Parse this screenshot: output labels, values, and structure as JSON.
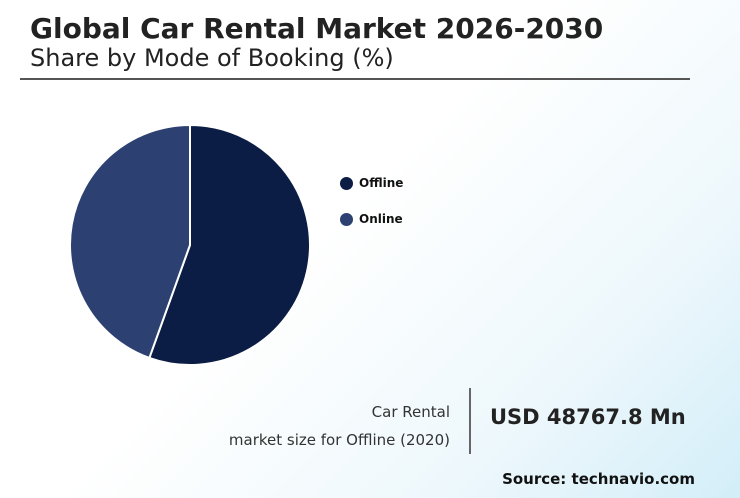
{
  "header": {
    "title": "Global Car Rental Market 2026-2030",
    "subtitle": "Share by Mode of Booking (%)"
  },
  "chart_data": {
    "type": "pie",
    "categories": [
      "Offline",
      "Online"
    ],
    "values": [
      55.5,
      44.5
    ],
    "colors": [
      "#0b1d45",
      "#2c4172"
    ],
    "legend_position": "right"
  },
  "stat": {
    "caption_line1": "Car Rental",
    "caption_line2": "market size for Offline (2020)",
    "value": "USD 48767.8 Mn"
  },
  "footer": {
    "source": "Source: technavio.com"
  }
}
